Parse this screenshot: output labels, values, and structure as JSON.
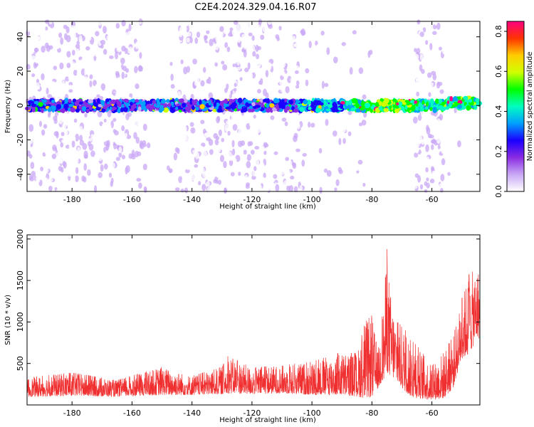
{
  "title": "C2E4.2024.329.04.16.R07",
  "chart_data": [
    {
      "type": "heatmap",
      "xlabel": "Height of straight line (km)",
      "ylabel": "Frequency (Hz)",
      "xlim": [
        -195,
        -44
      ],
      "ylim": [
        -50,
        49
      ],
      "xticks": [
        -180,
        -160,
        -140,
        -120,
        -100,
        -80,
        -60
      ],
      "yticks": [
        -40,
        -20,
        0,
        20,
        40
      ],
      "colorbar": {
        "label": "Normalized spectral amplitude",
        "range": [
          0.0,
          0.85
        ],
        "ticks": [
          0.0,
          0.2,
          0.4,
          0.6,
          0.8
        ],
        "colors": [
          "#ffffff",
          "#c9a8f5",
          "#8a2be2",
          "#1a00ff",
          "#00a0ff",
          "#00ffc0",
          "#00ff00",
          "#d0ff00",
          "#ffcc00",
          "#ff3300",
          "#ff0080"
        ]
      },
      "signal_band_hz": [
        -3,
        3
      ],
      "blank_gaps_km": [
        [
          -80,
          -66
        ],
        [
          -154,
          -149
        ]
      ],
      "dense_regions_km": [
        [
          -195,
          -155
        ],
        [
          -145,
          -105
        ],
        [
          -66,
          -56
        ]
      ]
    },
    {
      "type": "line",
      "xlabel": "Height of straight line (km)",
      "ylabel": "SNR (10 * v/v)",
      "xlim": [
        -195,
        -44
      ],
      "ylim": [
        0,
        2050
      ],
      "xticks": [
        -180,
        -160,
        -140,
        -120,
        -100,
        -80,
        -60
      ],
      "yticks": [
        500,
        1000,
        1500,
        2000
      ],
      "line_color": "#f03030",
      "envelope": {
        "x": [
          -195,
          -180,
          -165,
          -150,
          -140,
          -130,
          -128,
          -120,
          -110,
          -100,
          -90,
          -85,
          -82,
          -80,
          -78,
          -76,
          -75,
          -74,
          -72,
          -70,
          -67,
          -65,
          -60,
          -56,
          -53,
          -50,
          -48,
          -46,
          -45
        ],
        "y_max": [
          330,
          390,
          300,
          460,
          350,
          460,
          590,
          450,
          480,
          520,
          640,
          620,
          1030,
          1080,
          650,
          1240,
          1900,
          1400,
          1000,
          980,
          780,
          720,
          470,
          660,
          820,
          1280,
          1560,
          1620,
          1650
        ],
        "y_min": [
          100,
          110,
          100,
          120,
          120,
          130,
          140,
          130,
          140,
          120,
          120,
          100,
          80,
          100,
          200,
          300,
          400,
          350,
          300,
          200,
          100,
          80,
          60,
          80,
          200,
          560,
          600,
          720,
          800
        ]
      }
    }
  ]
}
